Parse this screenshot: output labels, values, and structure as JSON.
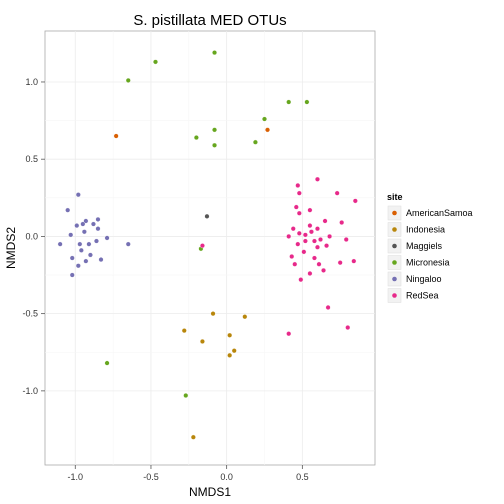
{
  "chart_data": {
    "type": "scatter",
    "title": "S. pistillata MED OTUs",
    "xlabel": "NMDS1",
    "ylabel": "NMDS2",
    "xlim": [
      -1.2,
      0.98
    ],
    "ylim": [
      -1.48,
      1.33
    ],
    "x_ticks": [
      -1.0,
      -0.5,
      0.0,
      0.5
    ],
    "x_tick_labels": [
      "-1.0",
      "-0.5",
      "0.0",
      "0.5"
    ],
    "y_ticks": [
      -1.0,
      -0.5,
      0.0,
      0.5,
      1.0
    ],
    "y_tick_labels": [
      "-1.0",
      "-0.5",
      "0.0",
      "0.5",
      "1.0"
    ],
    "grid": true,
    "legend": {
      "title": "site",
      "position": "right",
      "entries": [
        "AmericanSamoa",
        "Indonesia",
        "Maggiels",
        "Micronesia",
        "Ningaloo",
        "RedSea"
      ]
    },
    "series": [
      {
        "name": "AmericanSamoa",
        "color": "#d95f02",
        "points": [
          [
            -0.73,
            0.65
          ],
          [
            0.27,
            0.69
          ]
        ]
      },
      {
        "name": "Indonesia",
        "color": "#b8860b",
        "points": [
          [
            -0.09,
            -0.5
          ],
          [
            0.12,
            -0.52
          ],
          [
            -0.28,
            -0.61
          ],
          [
            -0.16,
            -0.68
          ],
          [
            0.02,
            -0.64
          ],
          [
            0.05,
            -0.74
          ],
          [
            0.02,
            -0.77
          ],
          [
            -0.22,
            -1.3
          ]
        ]
      },
      {
        "name": "Maggiels",
        "color": "#555555",
        "points": [
          [
            -0.13,
            0.13
          ]
        ]
      },
      {
        "name": "Micronesia",
        "color": "#66a61e",
        "points": [
          [
            -0.08,
            1.19
          ],
          [
            -0.47,
            1.13
          ],
          [
            -0.65,
            1.01
          ],
          [
            0.41,
            0.87
          ],
          [
            0.53,
            0.87
          ],
          [
            0.25,
            0.76
          ],
          [
            -0.08,
            0.69
          ],
          [
            -0.2,
            0.64
          ],
          [
            0.19,
            0.61
          ],
          [
            -0.08,
            0.59
          ],
          [
            -0.17,
            -0.08
          ],
          [
            -0.79,
            -0.82
          ],
          [
            -0.27,
            -1.03
          ]
        ]
      },
      {
        "name": "Ningaloo",
        "color": "#7570b3",
        "points": [
          [
            -0.98,
            0.27
          ],
          [
            -1.05,
            0.17
          ],
          [
            -0.93,
            0.1
          ],
          [
            -0.95,
            0.08
          ],
          [
            -0.99,
            0.07
          ],
          [
            -0.88,
            0.08
          ],
          [
            -0.85,
            0.11
          ],
          [
            -0.85,
            0.05
          ],
          [
            -0.94,
            0.03
          ],
          [
            -1.03,
            0.01
          ],
          [
            -0.79,
            -0.01
          ],
          [
            -0.86,
            -0.03
          ],
          [
            -0.91,
            -0.05
          ],
          [
            -0.97,
            -0.05
          ],
          [
            -1.1,
            -0.05
          ],
          [
            -0.65,
            -0.05
          ],
          [
            -0.96,
            -0.09
          ],
          [
            -0.9,
            -0.12
          ],
          [
            -0.83,
            -0.15
          ],
          [
            -1.02,
            -0.14
          ],
          [
            -0.93,
            -0.16
          ],
          [
            -0.98,
            -0.19
          ],
          [
            -1.02,
            -0.25
          ]
        ]
      },
      {
        "name": "RedSea",
        "color": "#e7298a",
        "points": [
          [
            0.6,
            0.37
          ],
          [
            0.47,
            0.33
          ],
          [
            0.48,
            0.28
          ],
          [
            0.73,
            0.28
          ],
          [
            0.85,
            0.23
          ],
          [
            0.46,
            0.19
          ],
          [
            0.55,
            0.17
          ],
          [
            0.48,
            0.15
          ],
          [
            0.65,
            0.1
          ],
          [
            0.76,
            0.09
          ],
          [
            0.55,
            0.07
          ],
          [
            0.44,
            0.05
          ],
          [
            0.6,
            0.05
          ],
          [
            0.48,
            0.02
          ],
          [
            0.52,
            0.01
          ],
          [
            0.56,
            0.03
          ],
          [
            0.41,
            0.0
          ],
          [
            0.68,
            0.0
          ],
          [
            0.79,
            -0.02
          ],
          [
            0.52,
            -0.03
          ],
          [
            0.58,
            -0.03
          ],
          [
            0.62,
            -0.02
          ],
          [
            0.47,
            -0.05
          ],
          [
            0.66,
            -0.06
          ],
          [
            0.6,
            -0.07
          ],
          [
            0.51,
            -0.1
          ],
          [
            0.43,
            -0.13
          ],
          [
            0.58,
            -0.14
          ],
          [
            0.84,
            -0.16
          ],
          [
            0.75,
            -0.17
          ],
          [
            0.45,
            -0.18
          ],
          [
            0.61,
            -0.18
          ],
          [
            0.64,
            -0.22
          ],
          [
            0.55,
            -0.24
          ],
          [
            0.49,
            -0.28
          ],
          [
            0.67,
            -0.46
          ],
          [
            0.8,
            -0.59
          ],
          [
            -0.16,
            -0.06
          ],
          [
            0.41,
            -0.63
          ]
        ]
      }
    ]
  }
}
